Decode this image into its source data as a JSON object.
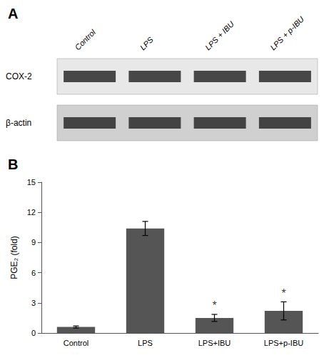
{
  "chart_data": [
    {
      "type": "blot",
      "title": "A",
      "categories": [
        "Control",
        "LPS",
        "LPS + IBU",
        "LPS + p-IBU"
      ],
      "annotations": [
        "COX-2",
        "β-actin"
      ]
    },
    {
      "type": "bar",
      "title": "B",
      "categories": [
        "Control",
        "LPS",
        "LPS+IBU",
        "LPS+p-IBU"
      ],
      "values": [
        0.6,
        10.4,
        1.5,
        2.2
      ],
      "errors": [
        0.1,
        0.7,
        0.35,
        0.9
      ],
      "color": "#555555",
      "ylabel": "PGE₂ (fold)",
      "ylim": [
        0,
        15
      ],
      "yticks": [
        0,
        3,
        6,
        9,
        12,
        15
      ],
      "grid": false,
      "annotations": [
        {
          "text": "*",
          "x": "LPS+IBU"
        },
        {
          "text": "*",
          "x": "LPS+p-IBU"
        }
      ]
    }
  ]
}
